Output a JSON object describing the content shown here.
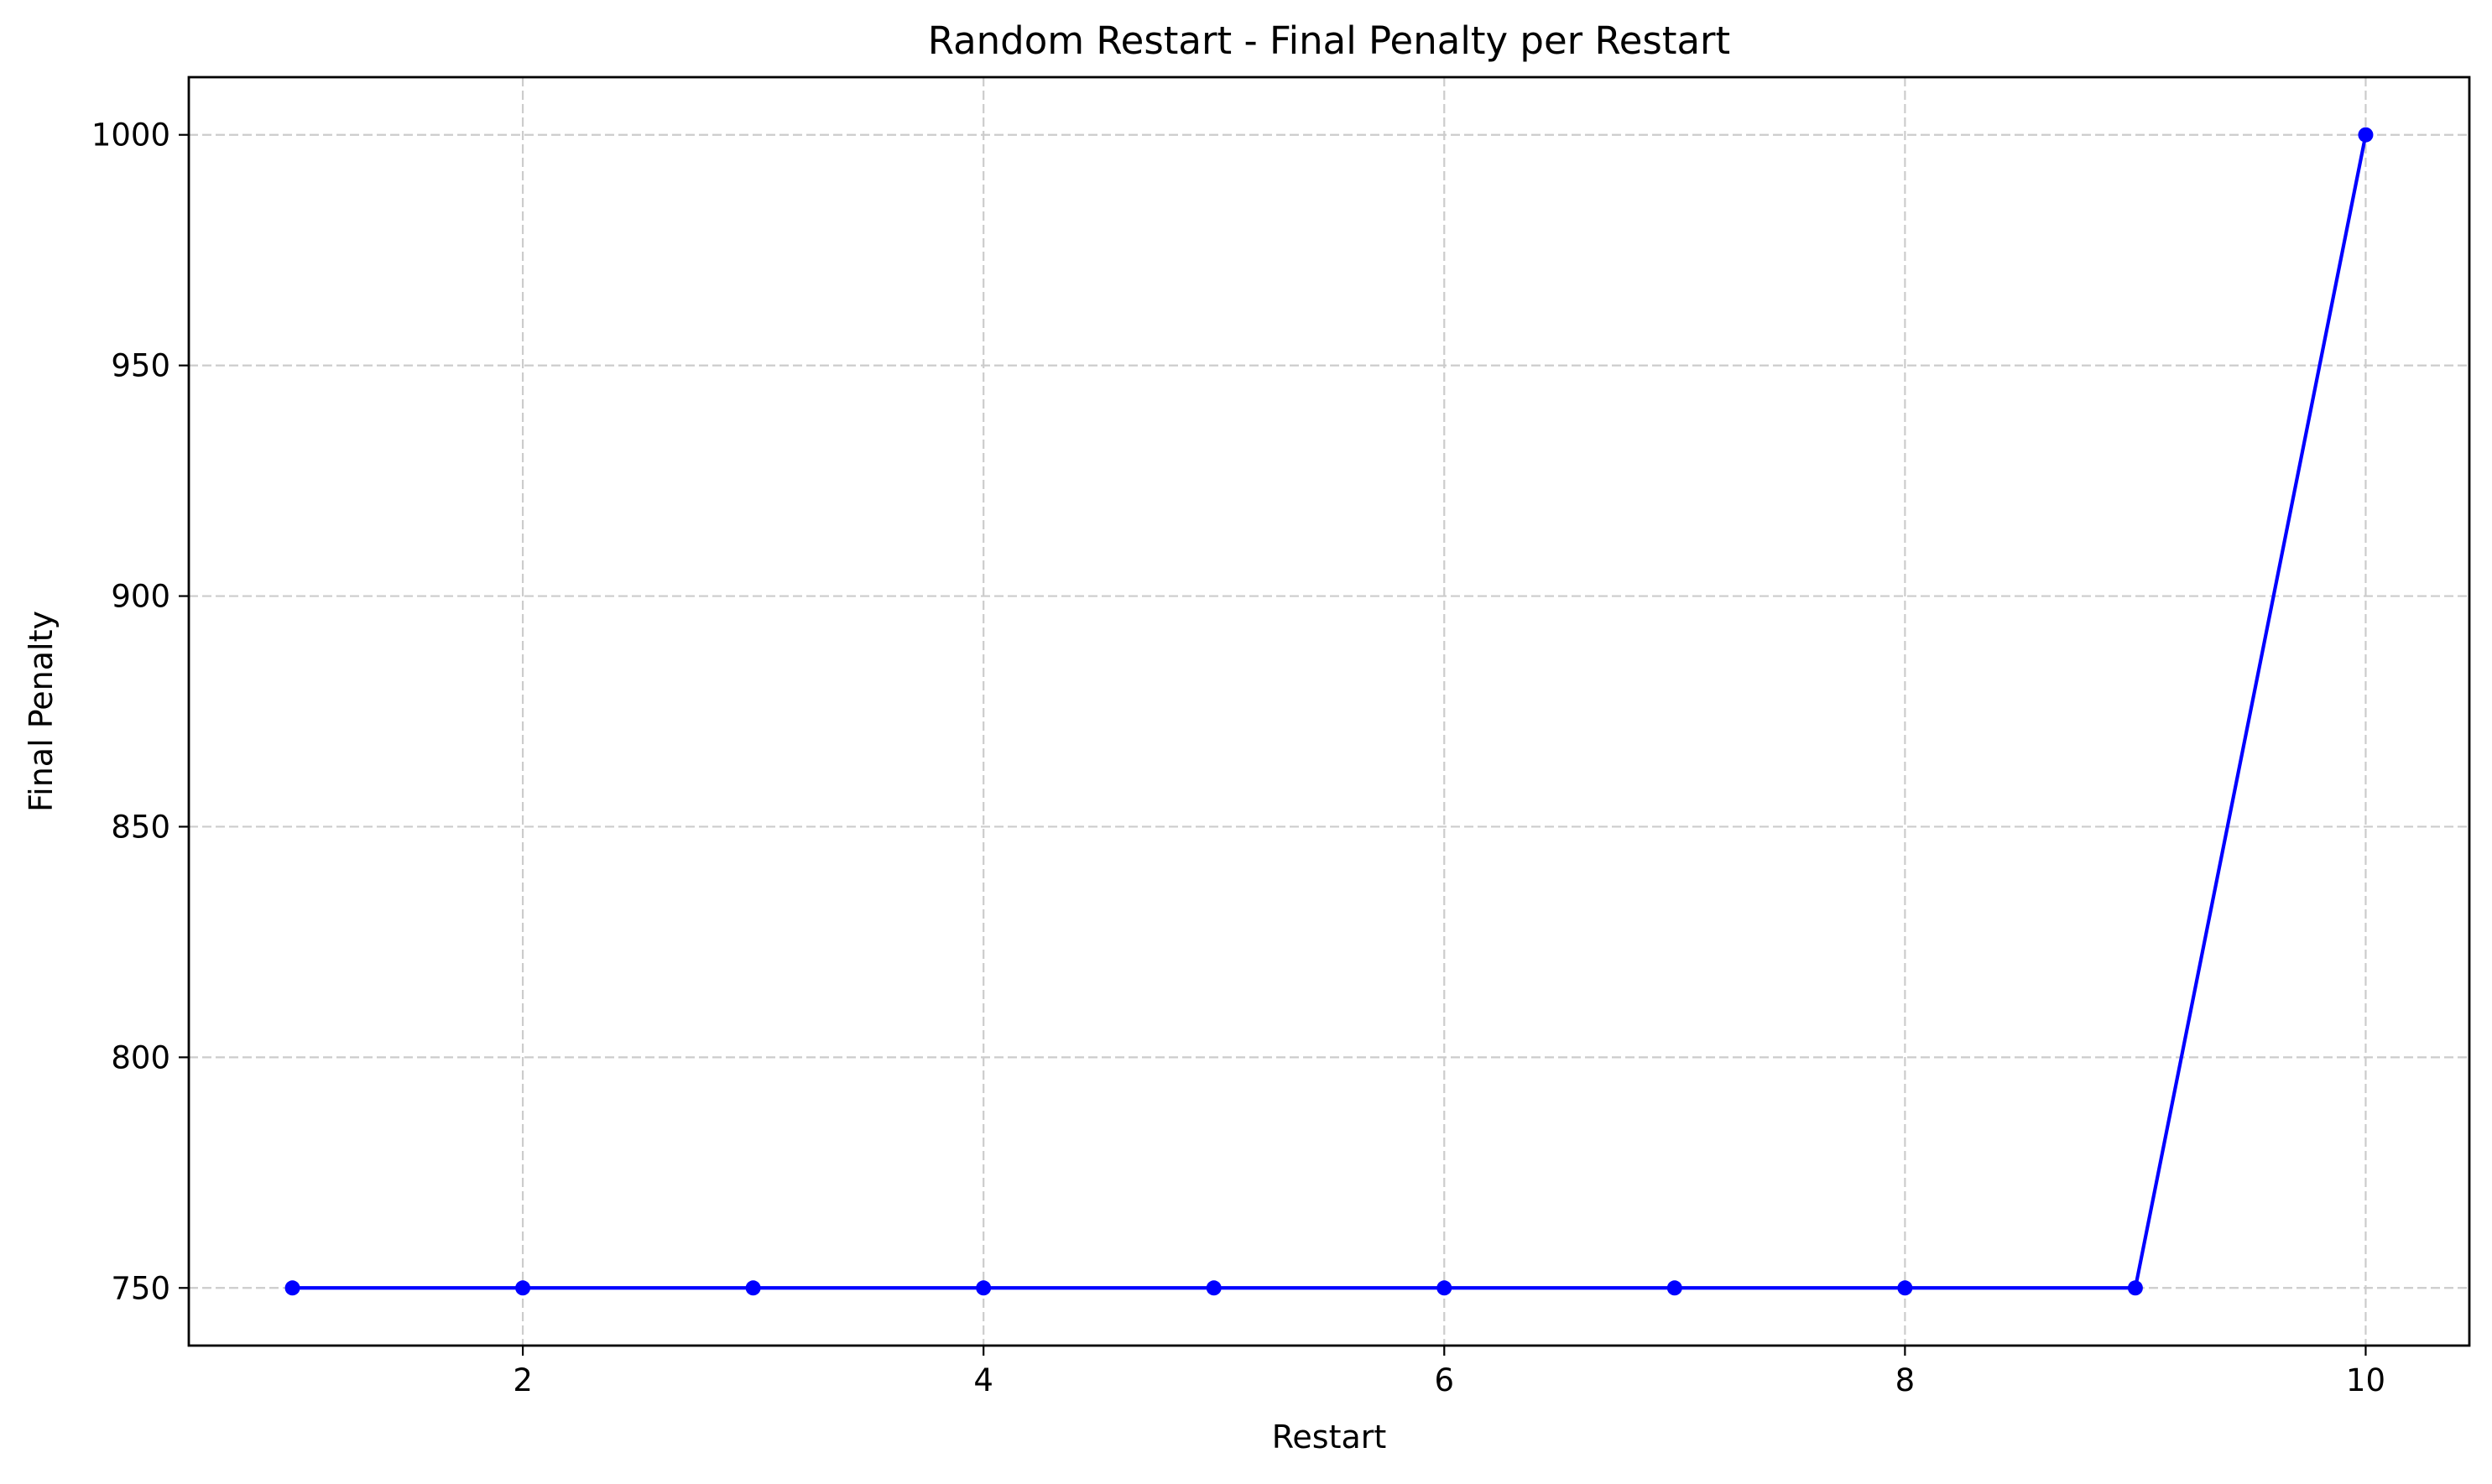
{
  "chart_data": {
    "type": "line",
    "title": "Random Restart - Final Penalty per Restart",
    "xlabel": "Restart",
    "ylabel": "Final Penalty",
    "xlim": [
      0.55,
      10.45
    ],
    "ylim": [
      737.5,
      1012.5
    ],
    "xticks": [
      2,
      4,
      6,
      8,
      10
    ],
    "xtick_labels": [
      "2",
      "4",
      "6",
      "8",
      "10"
    ],
    "yticks": [
      750,
      800,
      850,
      900,
      950,
      1000
    ],
    "ytick_labels": [
      "750",
      "800",
      "850",
      "900",
      "950",
      "1000"
    ],
    "grid": true,
    "legend": "none",
    "series": [
      {
        "color": "#0000ff",
        "marker": "circle",
        "x": [
          1,
          2,
          3,
          4,
          5,
          6,
          7,
          8,
          9,
          10
        ],
        "values": [
          750,
          750,
          750,
          750,
          750,
          750,
          750,
          750,
          750,
          1000
        ]
      }
    ]
  }
}
